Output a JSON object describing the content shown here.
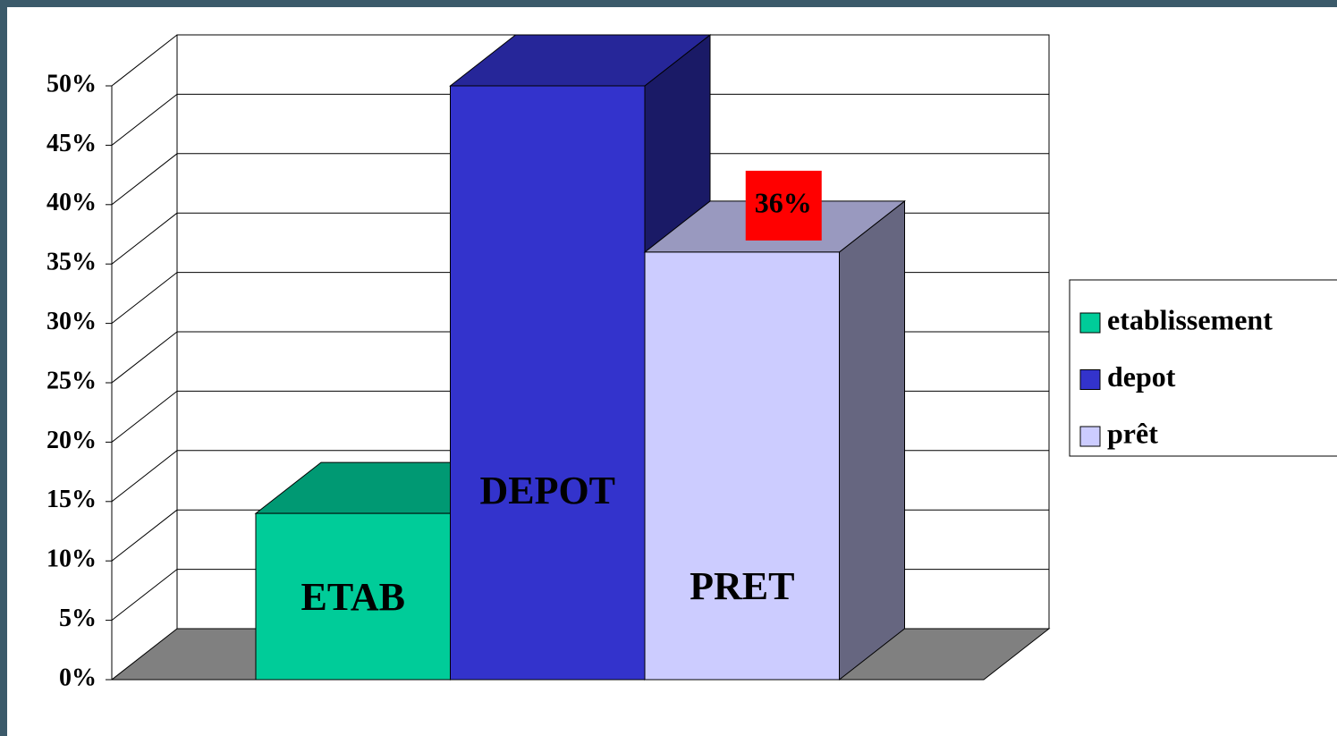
{
  "chart_data": {
    "type": "bar3d",
    "series": [
      {
        "name": "etablissement",
        "color": "#00cc99",
        "values": [
          14
        ]
      },
      {
        "name": "depot",
        "color": "#3333cc",
        "values": [
          50
        ]
      },
      {
        "name": "prêt",
        "color": "#ccccff",
        "values": [
          36
        ],
        "value_labels": [
          "36%"
        ]
      }
    ],
    "annotations": [
      "ETAB",
      "DEPOT",
      "PRET"
    ],
    "ylim": [
      0,
      50
    ],
    "yticks": [
      {
        "value": 0,
        "label": "0%"
      },
      {
        "value": 5,
        "label": "5%"
      },
      {
        "value": 10,
        "label": "10%"
      },
      {
        "value": 15,
        "label": "15%"
      },
      {
        "value": 20,
        "label": "20%"
      },
      {
        "value": 25,
        "label": "25%"
      },
      {
        "value": 30,
        "label": "30%"
      },
      {
        "value": 35,
        "label": "35%"
      },
      {
        "value": 40,
        "label": "40%"
      },
      {
        "value": 45,
        "label": "45%"
      },
      {
        "value": 50,
        "label": "50%"
      }
    ],
    "grid": true,
    "legend": "right"
  }
}
